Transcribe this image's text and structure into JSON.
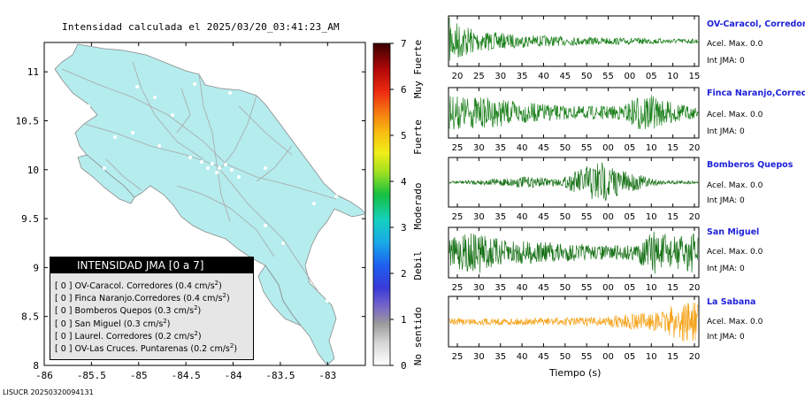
{
  "map_title": "Intensidad calculada el 2025/03/20_03:41:23_AM",
  "footer_id": "LISUCR 20250320094131",
  "colorbar": {
    "ticks": [
      "0",
      "1",
      "2",
      "3",
      "4",
      "5",
      "6",
      "7"
    ],
    "category_labels": [
      "No sentido",
      "Debil",
      "Moderado",
      "Fuerte",
      "Muy Fuerte"
    ]
  },
  "legend": {
    "title": "INTENSIDAD JMA [0 a 7]",
    "rows": [
      {
        "level": "[ 0 ]",
        "text": "OV-Caracol. Corredores (0.4 cm/s",
        "exp": "2",
        "close": ")"
      },
      {
        "level": "[ 0 ]",
        "text": "Finca Naranjo.Corredores (0.4 cm/s",
        "exp": "2",
        "close": ")"
      },
      {
        "level": "[ 0 ]",
        "text": "Bomberos Quepos (0.3 cm/s",
        "exp": "2",
        "close": ")"
      },
      {
        "level": "[ 0 ]",
        "text": "San Miguel (0.3 cm/s",
        "exp": "2",
        "close": ")"
      },
      {
        "level": "[ 0 ]",
        "text": "Laurel. Corredores (0.2 cm/s",
        "exp": "2",
        "close": ")"
      },
      {
        "level": "[ 0 ]",
        "text": "OV-Las Cruces. Puntarenas (0.2 cm/s",
        "exp": "2",
        "close": ")"
      }
    ]
  },
  "chart_data": [
    {
      "type": "map",
      "title": "Intensidad calculada el 2025/03/20_03:41:23_AM",
      "x_ticks": [
        "-86",
        "-85.5",
        "-85",
        "-84.5",
        "-84",
        "-83.5",
        "-83"
      ],
      "y_ticks": [
        "11",
        "10.5",
        "10",
        "9.5",
        "9",
        "8.5",
        "8"
      ],
      "xlim": [
        -86,
        -82.6
      ],
      "ylim": [
        8,
        11.3
      ],
      "land_color": "#b5eced",
      "colorbar": {
        "min": 0,
        "max": 7,
        "labels": [
          "No sentido",
          "Debil",
          "Moderado",
          "Fuerte",
          "Muy Fuerte"
        ]
      }
    },
    {
      "type": "line",
      "name": "waveforms",
      "xlabel": "Tiempo (s)",
      "stations": [
        {
          "name": "OV-Caracol, Corredores",
          "acel": "Acel. Max. 0.0",
          "jma": "Int JMA: 0",
          "color": "#1a7f1a",
          "x_ticks": [
            "20",
            "25",
            "30",
            "35",
            "40",
            "45",
            "50",
            "55",
            "00",
            "05",
            "10",
            "15"
          ],
          "envelope": [
            [
              0,
              1.0
            ],
            [
              0.05,
              0.75
            ],
            [
              0.12,
              0.45
            ],
            [
              0.25,
              0.3
            ],
            [
              0.45,
              0.2
            ],
            [
              0.7,
              0.14
            ],
            [
              1,
              0.1
            ]
          ]
        },
        {
          "name": "Finca Naranjo,Corredores",
          "acel": "Acel. Max. 0.0",
          "jma": "Int JMA: 0",
          "color": "#1a7f1a",
          "x_ticks": [
            "25",
            "30",
            "35",
            "40",
            "45",
            "50",
            "55",
            "00",
            "05",
            "10",
            "15",
            "20"
          ],
          "envelope": [
            [
              0,
              0.75
            ],
            [
              0.15,
              0.65
            ],
            [
              0.3,
              0.45
            ],
            [
              0.5,
              0.28
            ],
            [
              0.7,
              0.3
            ],
            [
              0.78,
              0.95
            ],
            [
              0.84,
              0.6
            ],
            [
              1,
              0.2
            ]
          ]
        },
        {
          "name": "Bomberos Quepos",
          "acel": "Acel. Max. 0.0",
          "jma": "Int JMA: 0",
          "color": "#157015",
          "x_ticks": [
            "25",
            "30",
            "35",
            "40",
            "45",
            "50",
            "55",
            "00",
            "05",
            "10",
            "15",
            "20"
          ],
          "envelope": [
            [
              0,
              0.05
            ],
            [
              0.15,
              0.12
            ],
            [
              0.3,
              0.25
            ],
            [
              0.45,
              0.15
            ],
            [
              0.52,
              0.55
            ],
            [
              0.6,
              1.0
            ],
            [
              0.7,
              0.5
            ],
            [
              0.85,
              0.1
            ],
            [
              1,
              0.06
            ]
          ]
        },
        {
          "name": "San Miguel",
          "acel": "Acel. Max. 0.0",
          "jma": "Int JMA: 0",
          "color": "#157015",
          "x_ticks": [
            "25",
            "30",
            "35",
            "40",
            "45",
            "50",
            "55",
            "00",
            "05",
            "10",
            "15",
            "20"
          ],
          "envelope": [
            [
              0,
              0.6
            ],
            [
              0.12,
              0.95
            ],
            [
              0.2,
              0.55
            ],
            [
              0.4,
              0.45
            ],
            [
              0.6,
              0.3
            ],
            [
              0.75,
              0.35
            ],
            [
              0.82,
              0.95
            ],
            [
              0.9,
              0.7
            ],
            [
              1,
              0.9
            ]
          ]
        },
        {
          "name": "La Sabana",
          "acel": "Acel. Max. 0.0",
          "jma": "Int JMA: 0",
          "color": "#f5a31a",
          "x_ticks": [
            "25",
            "30",
            "35",
            "40",
            "45",
            "50",
            "55",
            "00",
            "05",
            "10",
            "15",
            "20"
          ],
          "envelope": [
            [
              0,
              0.15
            ],
            [
              0.3,
              0.15
            ],
            [
              0.6,
              0.2
            ],
            [
              0.75,
              0.35
            ],
            [
              0.85,
              0.4
            ],
            [
              0.93,
              0.95
            ],
            [
              1,
              0.8
            ]
          ]
        }
      ]
    }
  ]
}
